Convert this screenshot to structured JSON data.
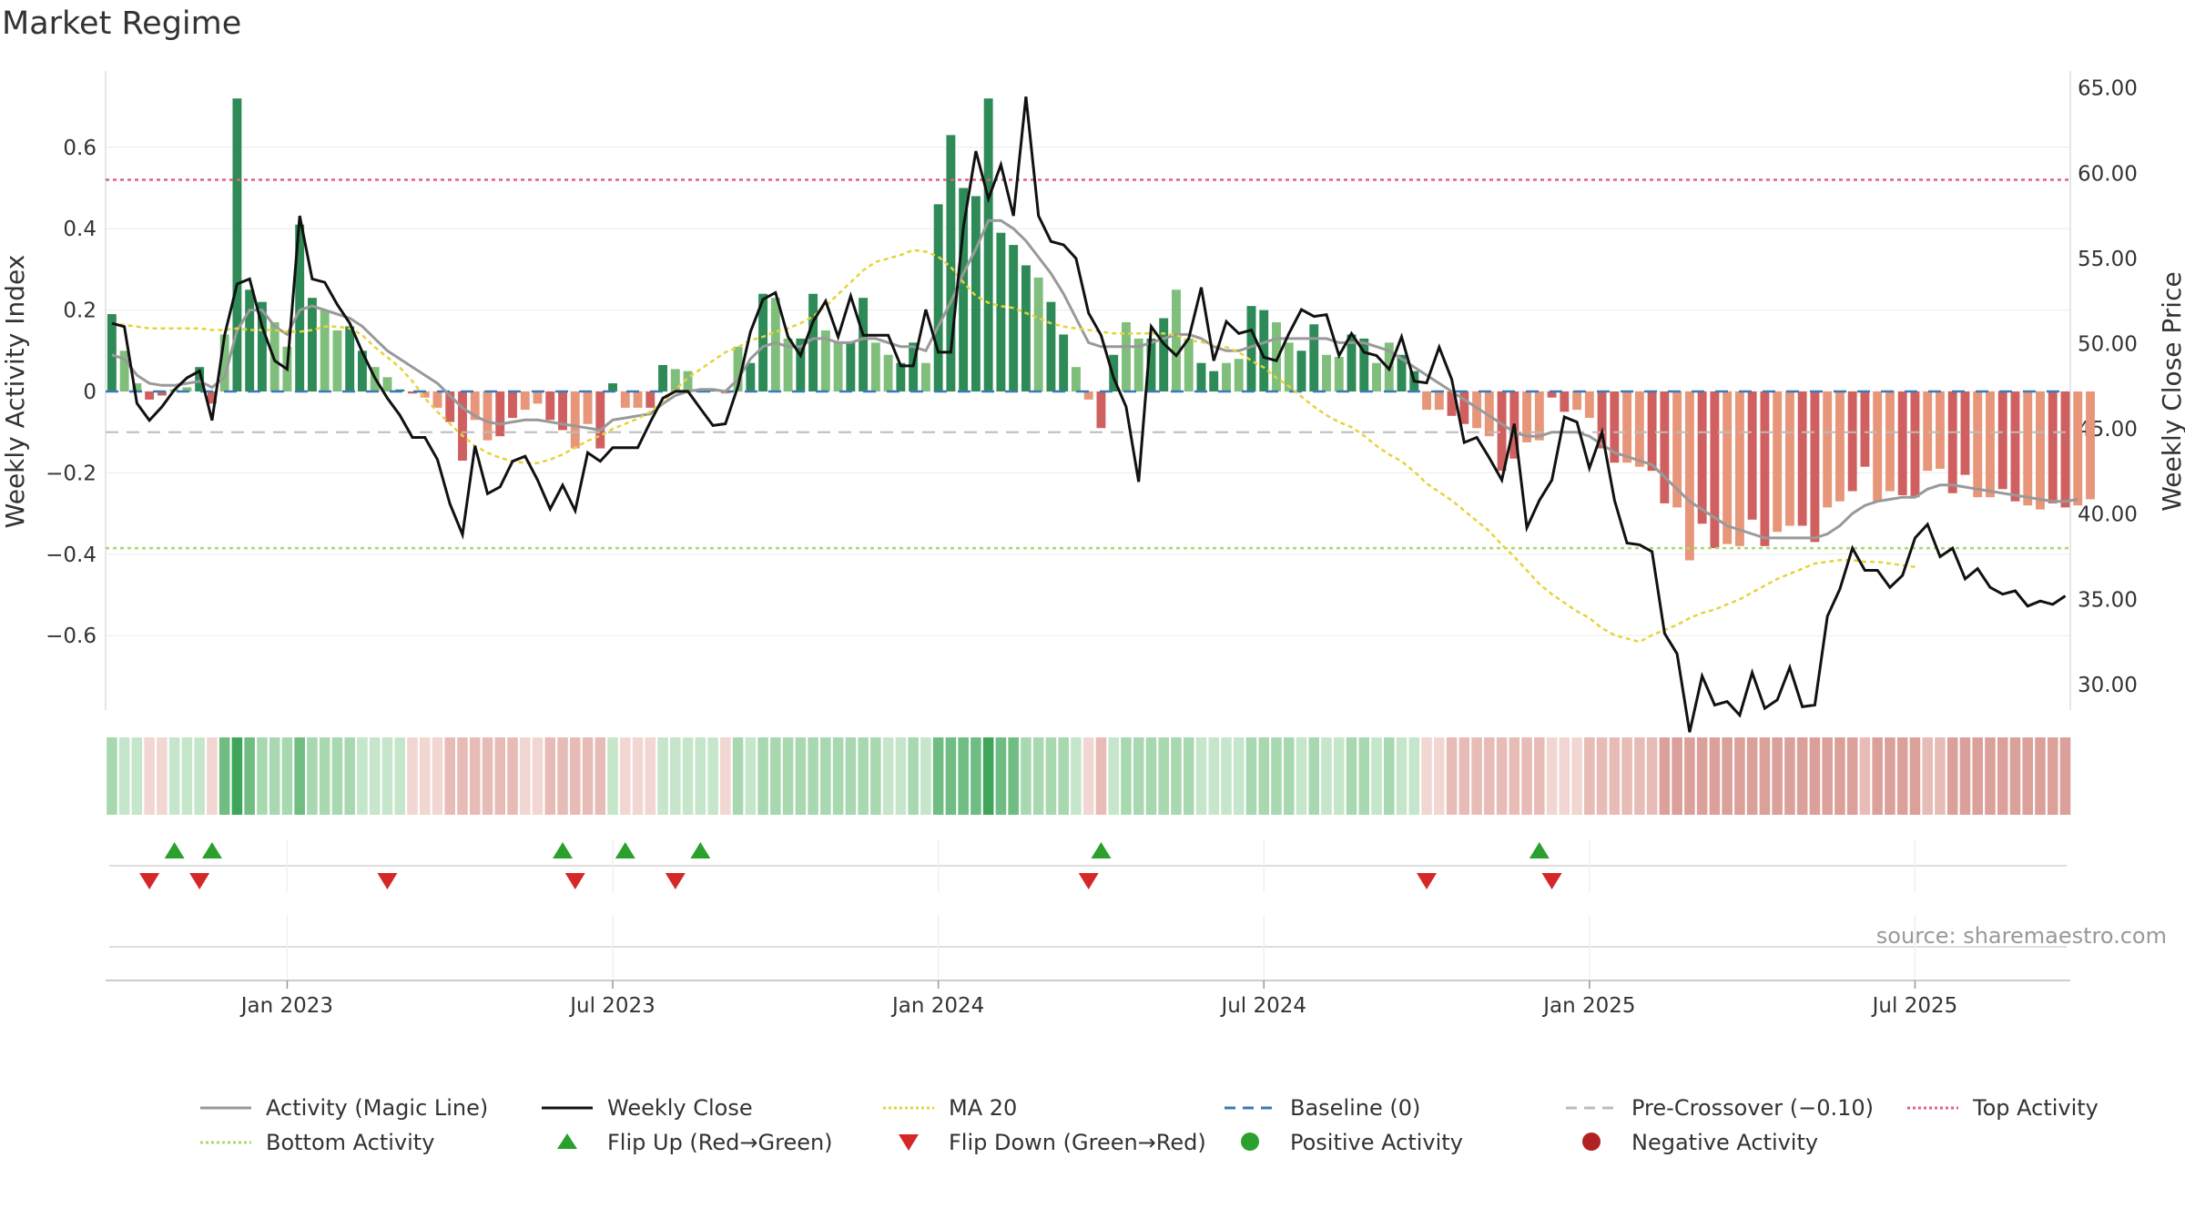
{
  "title": "Market Regime",
  "source": "source: sharemaestro.com",
  "chart_data": {
    "type": "bar",
    "ylabel": "Weekly Activity Index",
    "y2label": "Weekly Close Price",
    "ylim": [
      -0.78,
      0.78
    ],
    "y2lim": [
      28.5,
      66.0
    ],
    "yticks": [
      {
        "value": 0.6,
        "label": "0.6"
      },
      {
        "value": 0.4,
        "label": "0.4"
      },
      {
        "value": 0.2,
        "label": "0.2"
      },
      {
        "value": 0,
        "label": "0"
      },
      {
        "value": -0.2,
        "label": "−0.2"
      },
      {
        "value": -0.4,
        "label": "−0.4"
      },
      {
        "value": -0.6,
        "label": "−0.6"
      }
    ],
    "y2ticks": [
      {
        "value": 65,
        "label": "65.00"
      },
      {
        "value": 60,
        "label": "60.00"
      },
      {
        "value": 55,
        "label": "55.00"
      },
      {
        "value": 50,
        "label": "50.00"
      },
      {
        "value": 45,
        "label": "45.00"
      },
      {
        "value": 40,
        "label": "40.00"
      },
      {
        "value": 35,
        "label": "35.00"
      },
      {
        "value": 30,
        "label": "30.00"
      }
    ],
    "xticks": [
      {
        "week": 14,
        "label": "Jan 2023"
      },
      {
        "week": 40,
        "label": "Jul 2023"
      },
      {
        "week": 66,
        "label": "Jan 2024"
      },
      {
        "week": 92,
        "label": "Jul 2024"
      },
      {
        "week": 118,
        "label": "Jan 2025"
      },
      {
        "week": 144,
        "label": "Jul 2025"
      }
    ],
    "reference_lines": {
      "top_activity": 0.52,
      "bottom_activity": -0.385,
      "pre_crossover": -0.1,
      "baseline": 0
    },
    "colors": {
      "pos_strong": "#2e8b57",
      "pos_light": "#7fbf7b",
      "neg_strong": "#d06060",
      "neg_light": "#e8967a",
      "magic_line": "#999999",
      "close": "#111111",
      "ma20": "#e6d33a",
      "baseline": "#3a7ab8",
      "pre_crossover": "#bbbbbb",
      "top_activity": "#e0607e",
      "bottom_activity": "#a8d86e",
      "flip_up": "#2ca02c",
      "flip_down": "#d62728",
      "positive_dot": "#2ca02c",
      "negative_dot": "#b22222"
    },
    "weeks": 157,
    "activity": [
      0.19,
      0.1,
      0.02,
      -0.02,
      -0.01,
      0.005,
      0.01,
      0.06,
      -0.03,
      0.14,
      0.72,
      0.25,
      0.22,
      0.17,
      0.11,
      0.41,
      0.23,
      0.2,
      0.15,
      0.16,
      0.1,
      0.06,
      0.035,
      0.005,
      -0.005,
      -0.015,
      -0.04,
      -0.075,
      -0.17,
      -0.07,
      -0.12,
      -0.11,
      -0.065,
      -0.045,
      -0.03,
      -0.07,
      -0.095,
      -0.14,
      -0.08,
      -0.14,
      0.02,
      -0.04,
      -0.04,
      -0.04,
      0.065,
      0.055,
      0.05,
      0.0,
      0.005,
      -0.005,
      0.11,
      0.07,
      0.24,
      0.23,
      0.13,
      0.13,
      0.24,
      0.15,
      0.12,
      0.12,
      0.23,
      0.12,
      0.09,
      0.07,
      0.12,
      0.07,
      0.46,
      0.63,
      0.5,
      0.48,
      0.72,
      0.39,
      0.36,
      0.31,
      0.28,
      0.22,
      0.14,
      0.06,
      -0.02,
      -0.09,
      0.09,
      0.17,
      0.13,
      0.13,
      0.18,
      0.25,
      0.13,
      0.07,
      0.05,
      0.07,
      0.08,
      0.21,
      0.2,
      0.17,
      0.12,
      0.1,
      0.165,
      0.09,
      0.085,
      0.14,
      0.13,
      0.07,
      0.12,
      0.09,
      0.05,
      -0.045,
      -0.045,
      -0.06,
      -0.08,
      -0.09,
      -0.11,
      -0.195,
      -0.165,
      -0.125,
      -0.12,
      -0.015,
      -0.05,
      -0.045,
      -0.065,
      -0.14,
      -0.175,
      -0.175,
      -0.185,
      -0.195,
      -0.275,
      -0.285,
      -0.415,
      -0.325,
      -0.385,
      -0.375,
      -0.38,
      -0.315,
      -0.38,
      -0.345,
      -0.33,
      -0.33,
      -0.37,
      -0.285,
      -0.27,
      -0.245,
      -0.185,
      -0.27,
      -0.245,
      -0.255,
      -0.26,
      -0.195,
      -0.19,
      -0.25,
      -0.205,
      -0.26,
      -0.26,
      -0.24,
      -0.27,
      -0.28,
      -0.29,
      -0.275,
      -0.285,
      -0.28,
      -0.265
    ],
    "magic_line": [
      0.09,
      0.08,
      0.04,
      0.02,
      0.015,
      0.015,
      0.02,
      0.025,
      0.01,
      0.035,
      0.15,
      0.2,
      0.2,
      0.16,
      0.14,
      0.2,
      0.21,
      0.2,
      0.19,
      0.18,
      0.16,
      0.13,
      0.1,
      0.08,
      0.06,
      0.04,
      0.02,
      -0.01,
      -0.04,
      -0.06,
      -0.075,
      -0.08,
      -0.075,
      -0.07,
      -0.07,
      -0.075,
      -0.08,
      -0.085,
      -0.09,
      -0.095,
      -0.07,
      -0.065,
      -0.06,
      -0.055,
      -0.03,
      -0.01,
      0.0,
      0.005,
      0.005,
      0.0,
      0.03,
      0.08,
      0.11,
      0.12,
      0.11,
      0.11,
      0.13,
      0.13,
      0.12,
      0.12,
      0.13,
      0.13,
      0.12,
      0.11,
      0.11,
      0.1,
      0.16,
      0.22,
      0.29,
      0.35,
      0.42,
      0.42,
      0.4,
      0.37,
      0.33,
      0.29,
      0.24,
      0.18,
      0.12,
      0.11,
      0.11,
      0.11,
      0.11,
      0.12,
      0.13,
      0.14,
      0.14,
      0.13,
      0.11,
      0.1,
      0.1,
      0.11,
      0.12,
      0.13,
      0.13,
      0.13,
      0.13,
      0.13,
      0.12,
      0.12,
      0.12,
      0.11,
      0.1,
      0.08,
      0.06,
      0.04,
      0.02,
      0.0,
      -0.02,
      -0.04,
      -0.06,
      -0.08,
      -0.1,
      -0.11,
      -0.11,
      -0.1,
      -0.1,
      -0.1,
      -0.11,
      -0.13,
      -0.15,
      -0.16,
      -0.17,
      -0.18,
      -0.21,
      -0.24,
      -0.27,
      -0.29,
      -0.31,
      -0.33,
      -0.34,
      -0.35,
      -0.36,
      -0.36,
      -0.36,
      -0.36,
      -0.36,
      -0.35,
      -0.33,
      -0.3,
      -0.28,
      -0.27,
      -0.265,
      -0.26,
      -0.26,
      -0.24,
      -0.23,
      -0.23,
      -0.235,
      -0.24,
      -0.245,
      -0.25,
      -0.255,
      -0.26,
      -0.265,
      -0.27,
      -0.27,
      -0.265
    ],
    "weekly_close": [
      51.2,
      51.0,
      46.5,
      45.5,
      46.3,
      47.3,
      48.0,
      48.4,
      45.5,
      50.5,
      53.5,
      53.8,
      51.0,
      49.0,
      48.5,
      57.5,
      53.8,
      53.6,
      52.3,
      51.2,
      49.5,
      48.0,
      46.8,
      45.8,
      44.5,
      44.5,
      43.2,
      40.6,
      38.8,
      44.0,
      41.2,
      41.6,
      43.1,
      43.4,
      42.0,
      40.3,
      41.7,
      40.2,
      43.6,
      43.1,
      43.9,
      43.9,
      43.9,
      45.4,
      46.8,
      47.2,
      47.2,
      46.2,
      45.2,
      45.3,
      47.5,
      50.7,
      52.6,
      53.0,
      50.4,
      49.3,
      51.3,
      52.5,
      50.4,
      52.8,
      50.5,
      50.5,
      50.5,
      48.7,
      48.7,
      52.0,
      49.5,
      49.5,
      56.8,
      61.3,
      58.5,
      60.5,
      57.5,
      64.5,
      57.5,
      56.0,
      55.8,
      55.0,
      51.8,
      50.5,
      48.0,
      46.3,
      41.9,
      51.0,
      50.0,
      49.3,
      50.3,
      53.3,
      49.0,
      51.3,
      50.6,
      50.8,
      49.2,
      49.0,
      50.6,
      52.0,
      51.6,
      51.7,
      49.3,
      50.6,
      49.5,
      49.3,
      48.5,
      50.4,
      47.8,
      47.7,
      49.8,
      47.9,
      44.2,
      44.5,
      43.3,
      42.0,
      45.3,
      39.2,
      40.8,
      42.0,
      45.7,
      45.4,
      42.7,
      44.8,
      40.8,
      38.3,
      38.2,
      37.8,
      33.0,
      31.8,
      27.2,
      30.5,
      28.8,
      29.0,
      28.2,
      30.7,
      28.6,
      29.1,
      31.0,
      28.7,
      28.8,
      34.0,
      35.6,
      38.0,
      36.7,
      36.7,
      35.7,
      36.4,
      38.6,
      39.4,
      37.5,
      38.0,
      36.2,
      36.8,
      35.7,
      35.3,
      35.5,
      34.6,
      34.9,
      34.7,
      35.2
    ],
    "ma20": [
      51.2,
      51.1,
      51.0,
      50.9,
      50.9,
      50.9,
      50.9,
      50.9,
      50.8,
      50.8,
      50.9,
      50.8,
      50.8,
      50.8,
      50.7,
      50.7,
      50.8,
      51.0,
      51.0,
      50.9,
      50.5,
      49.8,
      49.2,
      48.6,
      47.8,
      46.8,
      46.0,
      45.3,
      44.6,
      44.0,
      43.6,
      43.3,
      43.1,
      43.0,
      43.0,
      43.2,
      43.5,
      43.9,
      44.3,
      44.6,
      45.0,
      45.3,
      45.6,
      46.0,
      46.6,
      47.3,
      48.0,
      48.5,
      49.0,
      49.5,
      49.8,
      50.2,
      50.4,
      50.7,
      50.9,
      51.2,
      51.6,
      52.2,
      52.9,
      53.6,
      54.3,
      54.8,
      55.0,
      55.2,
      55.5,
      55.4,
      55.1,
      54.5,
      53.6,
      52.8,
      52.4,
      52.2,
      52.1,
      51.8,
      51.5,
      51.2,
      51.0,
      50.9,
      50.8,
      50.7,
      50.6,
      50.6,
      50.6,
      50.6,
      50.6,
      50.5,
      50.2,
      50.1,
      49.9,
      49.8,
      49.5,
      49.0,
      48.6,
      48.0,
      47.5,
      46.9,
      46.3,
      45.8,
      45.4,
      45.1,
      44.6,
      44.0,
      43.5,
      43.1,
      42.5,
      41.8,
      41.3,
      40.8,
      40.2,
      39.6,
      39.0,
      38.2,
      37.5,
      36.7,
      35.9,
      35.3,
      34.8,
      34.3,
      33.9,
      33.3,
      32.9,
      32.7,
      32.5,
      32.9,
      33.2,
      33.5,
      33.9,
      34.2,
      34.4,
      34.7,
      35.0,
      35.4,
      35.8,
      36.2,
      36.5,
      36.8,
      37.1,
      37.2,
      37.3,
      37.3,
      37.2,
      37.2,
      37.1,
      37.0,
      36.9
    ],
    "regime_strip": [
      0,
      0,
      0,
      0,
      0,
      0,
      0,
      0,
      1,
      2,
      3,
      2,
      1,
      1,
      1,
      2,
      1,
      1,
      1,
      1,
      1,
      0,
      0,
      0,
      0,
      0,
      0,
      0,
      0,
      0,
      0,
      0,
      0,
      0,
      0,
      0,
      0,
      0,
      0,
      0,
      1,
      0,
      0,
      0,
      1,
      1,
      1,
      0,
      0,
      0,
      1,
      1,
      1,
      1,
      1,
      1,
      1,
      1,
      1,
      1,
      1,
      1,
      1,
      1,
      1,
      1,
      2,
      2,
      2,
      2,
      3,
      2,
      2,
      1,
      1,
      1,
      1,
      0,
      0,
      0,
      1,
      1,
      1,
      1,
      1,
      1,
      1,
      1,
      1,
      1,
      1,
      1,
      1,
      1,
      1,
      1,
      1,
      1,
      1,
      1,
      1,
      1,
      1,
      1,
      0,
      0,
      0,
      0,
      0,
      0,
      0,
      0,
      0,
      0,
      0,
      0,
      0,
      0,
      0,
      0,
      0,
      0,
      0,
      0,
      0,
      0,
      0,
      0,
      0,
      0,
      0,
      0,
      0,
      0,
      0,
      0,
      0,
      0,
      0,
      0,
      0,
      0,
      0,
      0,
      0,
      0,
      0,
      0,
      0,
      0,
      0,
      0,
      0,
      0,
      0,
      0,
      0
    ],
    "flip_up_weeks": [
      5,
      8,
      36,
      41,
      47,
      79,
      114
    ],
    "flip_down_weeks": [
      3,
      7,
      22,
      37,
      45,
      78,
      105,
      115
    ],
    "legend": [
      {
        "label": "Activity (Magic Line)",
        "kind": "line",
        "color": "#999999",
        "dash": ""
      },
      {
        "label": "Weekly Close",
        "kind": "line",
        "color": "#111111",
        "dash": ""
      },
      {
        "label": "MA 20",
        "kind": "line",
        "color": "#e6d33a",
        "dash": "3,3"
      },
      {
        "label": "Baseline (0)",
        "kind": "line",
        "color": "#3a7ab8",
        "dash": "12,8"
      },
      {
        "label": "Pre-Crossover (−0.10)",
        "kind": "line",
        "color": "#bbbbbb",
        "dash": "12,8"
      },
      {
        "label": "Top Activity",
        "kind": "line",
        "color": "#e0607e",
        "dash": "3,3"
      },
      {
        "label": "Bottom Activity",
        "kind": "line",
        "color": "#a8d86e",
        "dash": "3,3"
      },
      {
        "label": "Flip Up (Red→Green)",
        "kind": "up",
        "color": "#2ca02c",
        "dash": ""
      },
      {
        "label": "Flip Down (Green→Red)",
        "kind": "down",
        "color": "#d62728",
        "dash": ""
      },
      {
        "label": "Positive Activity",
        "kind": "dot",
        "color": "#2ca02c",
        "dash": ""
      },
      {
        "label": "Negative Activity",
        "kind": "dot",
        "color": "#b22222",
        "dash": ""
      }
    ]
  }
}
